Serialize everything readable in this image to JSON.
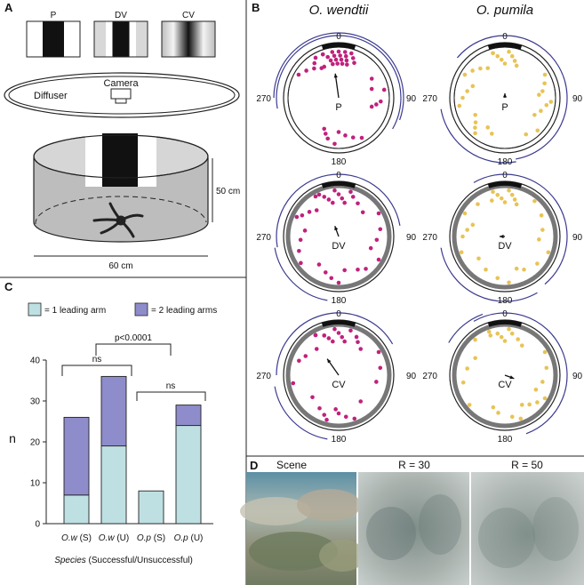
{
  "panel_a": {
    "letter": "A",
    "stimuli": [
      {
        "label": "P",
        "kind": "square"
      },
      {
        "label": "DV",
        "kind": "dog"
      },
      {
        "label": "CV",
        "kind": "cosine"
      }
    ],
    "diffuser_label": "Diffuser",
    "camera_label": "Camera",
    "height_label": "50 cm",
    "width_label": "60 cm"
  },
  "panel_b": {
    "letter": "B",
    "species": [
      {
        "name": "O. wendtii",
        "color": "#c0217d"
      },
      {
        "name": "O. pumila",
        "color": "#e8c355"
      }
    ],
    "rows": [
      "P",
      "DV",
      "CV"
    ],
    "angles": {
      "top": "0",
      "right": "90",
      "bottom": "180",
      "left": "270"
    },
    "arc_color": "#3b3a8f"
  },
  "panel_c": {
    "letter": "C",
    "legend": [
      {
        "label": "= 1 leading arm",
        "color": "#bfe0e3"
      },
      {
        "label": "= 2 leading arms",
        "color": "#8e8ccb"
      }
    ],
    "sig_labels": {
      "wide": "p<0.0001",
      "left": "ns",
      "right": "ns"
    },
    "chart_data": {
      "type": "bar",
      "stacked": true,
      "categories": [
        "O.w (S)",
        "O.w (U)",
        "O.p (S)",
        "O.p (U)"
      ],
      "category_parts": [
        [
          "O.w",
          "(S)"
        ],
        [
          "O.w",
          "(U)"
        ],
        [
          "O.p",
          "(S)"
        ],
        [
          "O.p",
          "(U)"
        ]
      ],
      "series": [
        {
          "name": "= 1 leading arm",
          "values": [
            7,
            19,
            8,
            24
          ]
        },
        {
          "name": "= 2 leading arms",
          "values": [
            19,
            17,
            0,
            5
          ]
        }
      ],
      "ylabel": "n",
      "xlabel_italic": "Species",
      "xlabel_rest": " (Successful/Unsuccessful)",
      "ylim": [
        0,
        40
      ],
      "yticks": [
        0,
        10,
        20,
        30,
        40
      ]
    }
  },
  "panel_d": {
    "letter": "D",
    "photos": [
      {
        "label": "Scene"
      },
      {
        "label": "R = 30"
      },
      {
        "label": "R = 50"
      }
    ]
  }
}
